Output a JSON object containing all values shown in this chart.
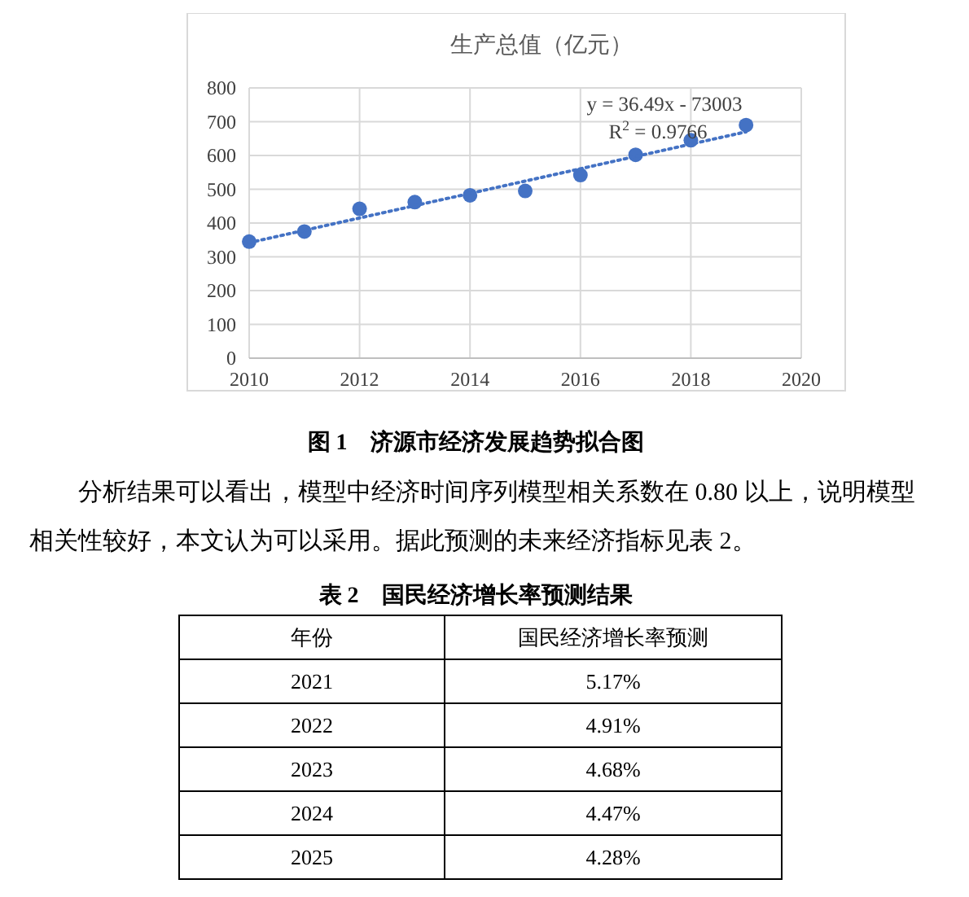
{
  "chart_data": [
    {
      "type": "scatter",
      "title": "生产总值（亿元）",
      "xlim": [
        2010,
        2020
      ],
      "xticks": [
        2010,
        2012,
        2014,
        2016,
        2018,
        2020
      ],
      "ylim": [
        0,
        800
      ],
      "yticks": [
        0,
        100,
        200,
        300,
        400,
        500,
        600,
        700,
        800
      ],
      "grid": true,
      "marker": "circle",
      "series": [
        {
          "type": "scatter",
          "color": "#4472c4",
          "x": [
            2010,
            2011,
            2012,
            2013,
            2014,
            2015,
            2016,
            2017,
            2018,
            2019
          ],
          "values": [
            345,
            375,
            442,
            462,
            482,
            495,
            542,
            602,
            645,
            690
          ]
        },
        {
          "type": "line",
          "color": "#4472c4",
          "line_style": "dotted",
          "marker": "none",
          "x": [
            2010,
            2019
          ],
          "values": [
            342,
            670
          ]
        }
      ],
      "annotations": [
        "y = 36.49x - 73003",
        "R$^{2}$ = 0.9766",
        "图 1　济源市经济发展趋势拟合图",
        "分析结果可以看出，模型中经济时间序列模型相关系数在 0.80 以上，说明模型相关性较好，本文认为可以采用。据此预测的未来经济指标见表 2。"
      ]
    },
    {
      "type": "heatmap",
      "title": "表 2　国民经济增长率预测结果",
      "ylabel": "年份",
      "categories": [
        "国民经济增长率预测"
      ],
      "y_categories": [
        "2021",
        "2022",
        "2023",
        "2024",
        "2025"
      ],
      "cells": [
        [
          5.17
        ],
        [
          4.91
        ],
        [
          4.68
        ],
        [
          4.47
        ],
        [
          4.28
        ]
      ],
      "cell_labels": [
        [
          "5.17%"
        ],
        [
          "4.91%"
        ],
        [
          "4.68%"
        ],
        [
          "4.47%"
        ],
        [
          "4.28%"
        ]
      ]
    }
  ]
}
